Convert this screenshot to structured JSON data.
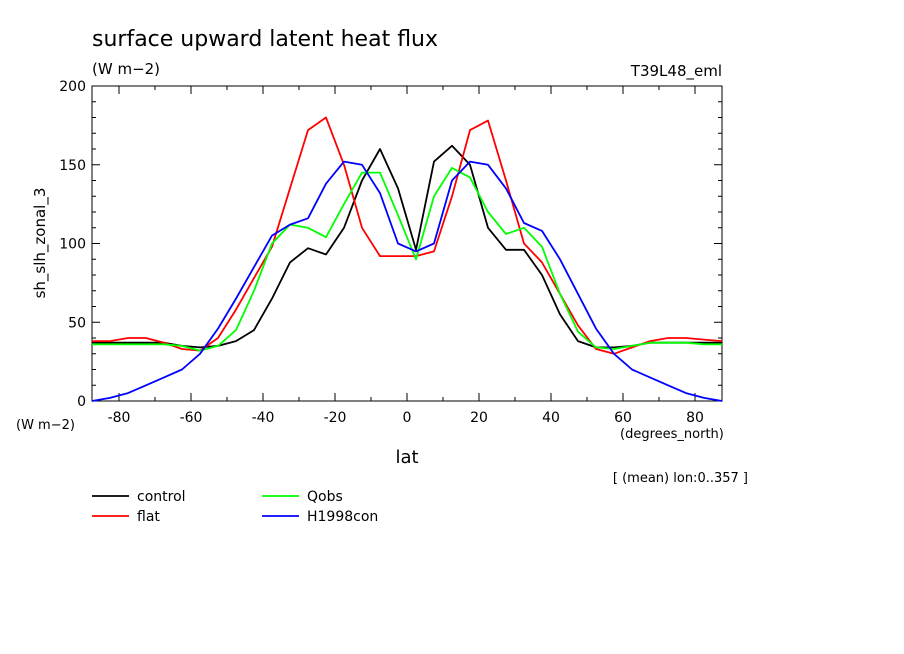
{
  "chart_data": {
    "type": "line",
    "title": "surface upward latent heat flux",
    "subtitle": "(W m−2)",
    "experiment": "T39L48_eml",
    "xlabel": "lat",
    "x_units": "(degrees_north)",
    "ylabel": "sh_slh_zonal_3",
    "y_units": "(W m−2)",
    "note": "[ (mean) lon:0..357 ]",
    "xlim": [
      -87.5,
      87.5
    ],
    "ylim": [
      0,
      200
    ],
    "xticks": [
      -80,
      -60,
      -40,
      -20,
      0,
      20,
      40,
      60,
      80
    ],
    "yticks": [
      0,
      50,
      100,
      150,
      200
    ],
    "grid": false,
    "legend_position": "bottom-left",
    "x": [
      -87.5,
      -82.5,
      -77.5,
      -72.5,
      -67.5,
      -62.5,
      -57.5,
      -52.5,
      -47.5,
      -42.5,
      -37.5,
      -32.5,
      -27.5,
      -22.5,
      -17.5,
      -12.5,
      -7.5,
      -2.5,
      2.5,
      7.5,
      12.5,
      17.5,
      22.5,
      27.5,
      32.5,
      37.5,
      42.5,
      47.5,
      52.5,
      57.5,
      62.5,
      67.5,
      72.5,
      77.5,
      82.5,
      87.5
    ],
    "series": [
      {
        "name": "control",
        "color": "#000000",
        "values": [
          37,
          37,
          37,
          37,
          37,
          35,
          34,
          35,
          38,
          45,
          65,
          88,
          97,
          93,
          110,
          140,
          160,
          135,
          96,
          152,
          162,
          150,
          110,
          96,
          96,
          80,
          55,
          38,
          34,
          34,
          35,
          37,
          37,
          37,
          37,
          37
        ]
      },
      {
        "name": "flat",
        "color": "#ff0000",
        "values": [
          38,
          38,
          40,
          40,
          37,
          33,
          32,
          40,
          58,
          78,
          98,
          135,
          172,
          180,
          150,
          110,
          92,
          92,
          92,
          95,
          130,
          172,
          178,
          140,
          100,
          88,
          68,
          48,
          33,
          30,
          34,
          38,
          40,
          40,
          39,
          38
        ]
      },
      {
        "name": "Qobs",
        "color": "#00ff00",
        "values": [
          36,
          36,
          36,
          36,
          36,
          35,
          32,
          35,
          45,
          70,
          100,
          112,
          110,
          104,
          125,
          145,
          145,
          118,
          90,
          130,
          148,
          142,
          120,
          106,
          110,
          98,
          68,
          44,
          34,
          33,
          35,
          37,
          37,
          37,
          36,
          36
        ]
      },
      {
        "name": "H1998con",
        "color": "#0000ff",
        "values": [
          0,
          2,
          5,
          10,
          15,
          20,
          30,
          46,
          65,
          85,
          105,
          112,
          116,
          138,
          152,
          150,
          132,
          100,
          95,
          100,
          140,
          152,
          150,
          135,
          113,
          108,
          90,
          68,
          46,
          30,
          20,
          15,
          10,
          5,
          2,
          0
        ]
      }
    ]
  }
}
